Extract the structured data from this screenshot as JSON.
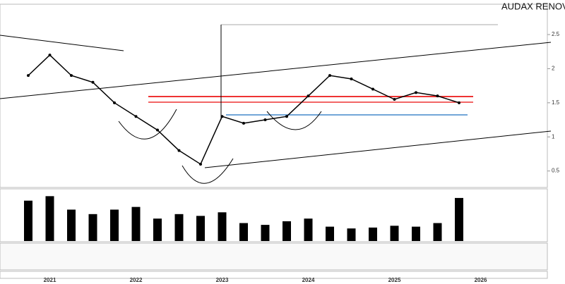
{
  "chart_data": [
    {
      "type": "line",
      "title": "AUDAX RENOV",
      "categories": [
        null,
        "2021",
        null,
        null,
        null,
        "2022",
        null,
        null,
        null,
        "2023",
        null,
        null,
        null,
        "2024",
        null,
        null,
        null,
        "2025",
        null,
        null,
        null,
        "2026"
      ],
      "values": [
        1.9,
        2.2,
        1.9,
        1.8,
        1.5,
        1.3,
        1.1,
        0.8,
        0.6,
        1.3,
        1.2,
        1.25,
        1.3,
        1.6,
        1.9,
        1.85,
        1.7,
        1.55,
        1.65,
        1.6,
        1.5,
        null
      ],
      "color": "#000000",
      "ylim": [
        0.3,
        2.8
      ],
      "yticks": [
        0.5,
        1,
        1.5,
        2,
        2.5
      ],
      "grid": false
    },
    {
      "type": "bar",
      "categories": [
        null,
        "2021",
        null,
        null,
        null,
        "2022",
        null,
        null,
        null,
        "2023",
        null,
        null,
        null,
        "2024",
        null,
        null,
        null,
        "2025",
        null,
        null,
        null,
        "2026"
      ],
      "values": [
        4.5,
        5,
        3.5,
        3,
        3.5,
        3.8,
        2.5,
        3,
        2.8,
        3.2,
        2,
        1.8,
        2.2,
        2.5,
        1.6,
        1.4,
        1.5,
        1.7,
        1.6,
        2,
        4.8,
        null
      ],
      "color": "#000000",
      "ylim": [
        0,
        5.5
      ]
    }
  ]
}
